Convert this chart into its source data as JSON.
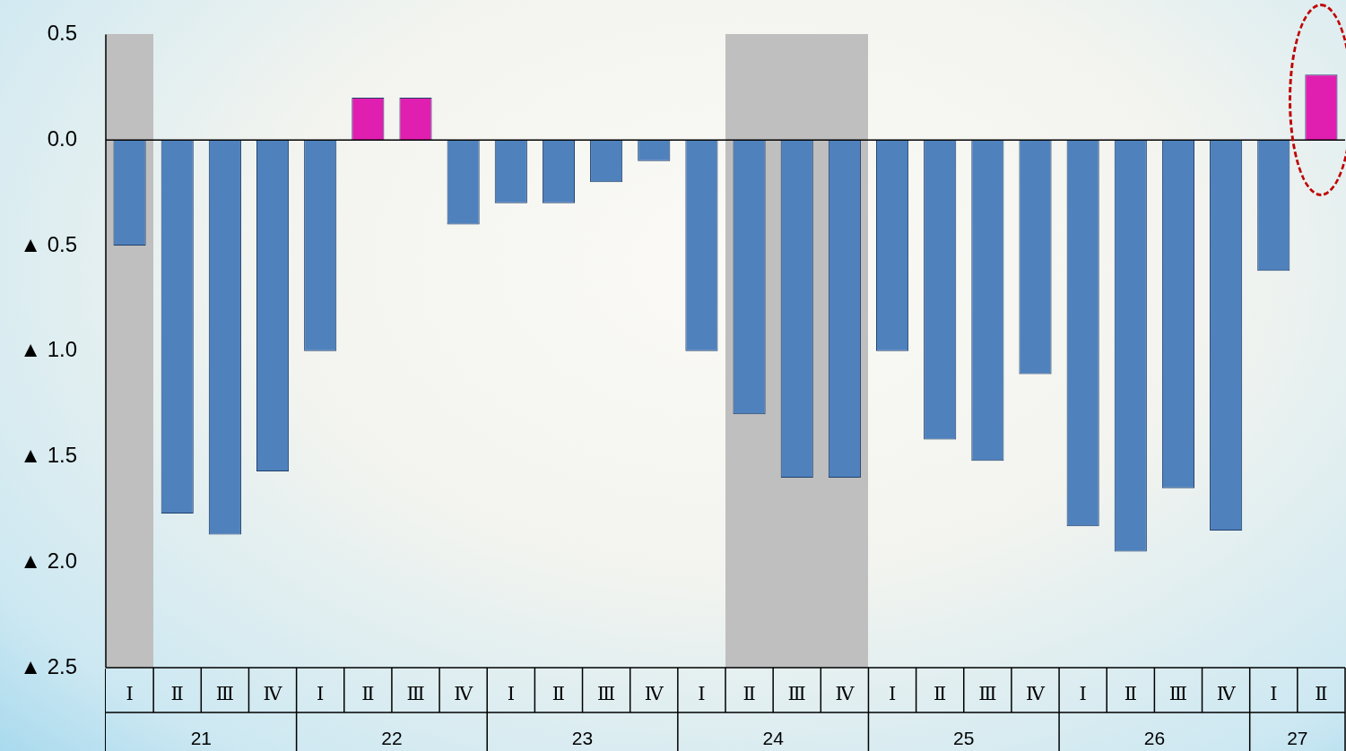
{
  "chart_data": {
    "type": "bar",
    "categories": [
      "Ⅰ",
      "Ⅱ",
      "Ⅲ",
      "Ⅳ",
      "Ⅰ",
      "Ⅱ",
      "Ⅲ",
      "Ⅳ",
      "Ⅰ",
      "Ⅱ",
      "Ⅲ",
      "Ⅳ",
      "Ⅰ",
      "Ⅱ",
      "Ⅲ",
      "Ⅳ",
      "Ⅰ",
      "Ⅱ",
      "Ⅲ",
      "Ⅳ",
      "Ⅰ",
      "Ⅱ",
      "Ⅲ",
      "Ⅳ",
      "Ⅰ",
      "Ⅱ"
    ],
    "values": [
      -0.5,
      -1.77,
      -1.87,
      -1.57,
      -1.0,
      0.2,
      0.2,
      -0.4,
      -0.3,
      -0.3,
      -0.2,
      -0.1,
      -1.0,
      -1.3,
      -1.6,
      -1.6,
      -1.0,
      -1.42,
      -1.52,
      -1.11,
      -1.83,
      -1.95,
      -1.65,
      -1.85,
      -0.62,
      0.31
    ],
    "colors": [
      "#4f81bd",
      "#4f81bd",
      "#4f81bd",
      "#4f81bd",
      "#4f81bd",
      "#e01fb0",
      "#e01fb0",
      "#4f81bd",
      "#4f81bd",
      "#4f81bd",
      "#4f81bd",
      "#4f81bd",
      "#4f81bd",
      "#4f81bd",
      "#4f81bd",
      "#4f81bd",
      "#4f81bd",
      "#4f81bd",
      "#4f81bd",
      "#4f81bd",
      "#4f81bd",
      "#4f81bd",
      "#4f81bd",
      "#4f81bd",
      "#4f81bd",
      "#e01fb0"
    ],
    "annotations": [
      "21",
      "22",
      "23",
      "24",
      "25",
      "26",
      "27"
    ],
    "ylim": [
      -2.5,
      0.5
    ],
    "yticks": [
      {
        "value": 0.5,
        "label": "0.5"
      },
      {
        "value": 0,
        "label": "0.0"
      },
      {
        "value": -0.5,
        "label": "▲ 0.5"
      },
      {
        "value": -1,
        "label": "▲ 1.0"
      },
      {
        "value": -1.5,
        "label": "▲ 1.5"
      },
      {
        "value": -2,
        "label": "▲ 2.0"
      },
      {
        "value": -2.5,
        "label": "▲ 2.5"
      }
    ],
    "ref_lines": [
      {
        "axis": "y",
        "value": 0,
        "color": "#000000"
      }
    ],
    "legend": false
  }
}
